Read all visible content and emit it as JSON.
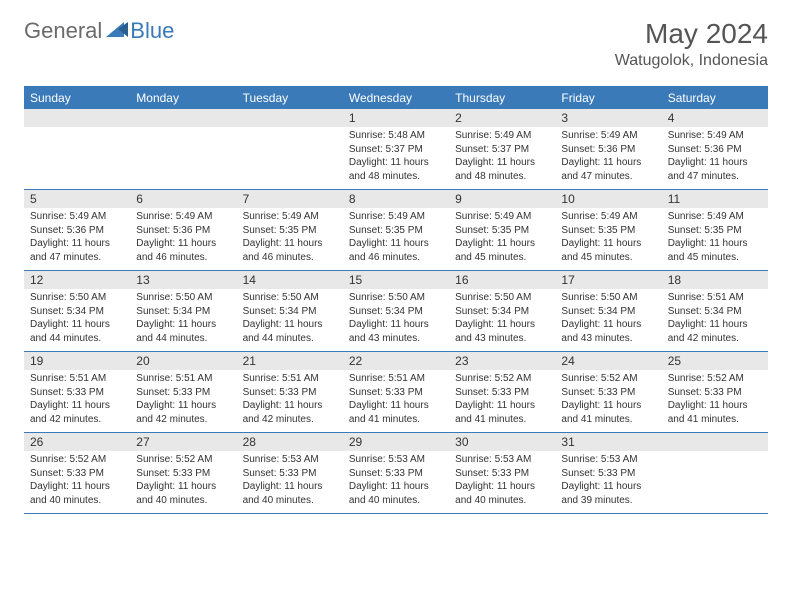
{
  "logo": {
    "general": "General",
    "blue": "Blue"
  },
  "title": {
    "month_year": "May 2024",
    "location": "Watugolok, Indonesia"
  },
  "colors": {
    "header_blue": "#3a7ab8",
    "daynum_bg": "#e8e8e8",
    "text": "#333333",
    "logo_gray": "#6b6b6b"
  },
  "weekdays": [
    "Sunday",
    "Monday",
    "Tuesday",
    "Wednesday",
    "Thursday",
    "Friday",
    "Saturday"
  ],
  "weeks": [
    [
      {
        "day": "",
        "sunrise": "",
        "sunset": "",
        "daylight": ""
      },
      {
        "day": "",
        "sunrise": "",
        "sunset": "",
        "daylight": ""
      },
      {
        "day": "",
        "sunrise": "",
        "sunset": "",
        "daylight": ""
      },
      {
        "day": "1",
        "sunrise": "Sunrise: 5:48 AM",
        "sunset": "Sunset: 5:37 PM",
        "daylight": "Daylight: 11 hours and 48 minutes."
      },
      {
        "day": "2",
        "sunrise": "Sunrise: 5:49 AM",
        "sunset": "Sunset: 5:37 PM",
        "daylight": "Daylight: 11 hours and 48 minutes."
      },
      {
        "day": "3",
        "sunrise": "Sunrise: 5:49 AM",
        "sunset": "Sunset: 5:36 PM",
        "daylight": "Daylight: 11 hours and 47 minutes."
      },
      {
        "day": "4",
        "sunrise": "Sunrise: 5:49 AM",
        "sunset": "Sunset: 5:36 PM",
        "daylight": "Daylight: 11 hours and 47 minutes."
      }
    ],
    [
      {
        "day": "5",
        "sunrise": "Sunrise: 5:49 AM",
        "sunset": "Sunset: 5:36 PM",
        "daylight": "Daylight: 11 hours and 47 minutes."
      },
      {
        "day": "6",
        "sunrise": "Sunrise: 5:49 AM",
        "sunset": "Sunset: 5:36 PM",
        "daylight": "Daylight: 11 hours and 46 minutes."
      },
      {
        "day": "7",
        "sunrise": "Sunrise: 5:49 AM",
        "sunset": "Sunset: 5:35 PM",
        "daylight": "Daylight: 11 hours and 46 minutes."
      },
      {
        "day": "8",
        "sunrise": "Sunrise: 5:49 AM",
        "sunset": "Sunset: 5:35 PM",
        "daylight": "Daylight: 11 hours and 46 minutes."
      },
      {
        "day": "9",
        "sunrise": "Sunrise: 5:49 AM",
        "sunset": "Sunset: 5:35 PM",
        "daylight": "Daylight: 11 hours and 45 minutes."
      },
      {
        "day": "10",
        "sunrise": "Sunrise: 5:49 AM",
        "sunset": "Sunset: 5:35 PM",
        "daylight": "Daylight: 11 hours and 45 minutes."
      },
      {
        "day": "11",
        "sunrise": "Sunrise: 5:49 AM",
        "sunset": "Sunset: 5:35 PM",
        "daylight": "Daylight: 11 hours and 45 minutes."
      }
    ],
    [
      {
        "day": "12",
        "sunrise": "Sunrise: 5:50 AM",
        "sunset": "Sunset: 5:34 PM",
        "daylight": "Daylight: 11 hours and 44 minutes."
      },
      {
        "day": "13",
        "sunrise": "Sunrise: 5:50 AM",
        "sunset": "Sunset: 5:34 PM",
        "daylight": "Daylight: 11 hours and 44 minutes."
      },
      {
        "day": "14",
        "sunrise": "Sunrise: 5:50 AM",
        "sunset": "Sunset: 5:34 PM",
        "daylight": "Daylight: 11 hours and 44 minutes."
      },
      {
        "day": "15",
        "sunrise": "Sunrise: 5:50 AM",
        "sunset": "Sunset: 5:34 PM",
        "daylight": "Daylight: 11 hours and 43 minutes."
      },
      {
        "day": "16",
        "sunrise": "Sunrise: 5:50 AM",
        "sunset": "Sunset: 5:34 PM",
        "daylight": "Daylight: 11 hours and 43 minutes."
      },
      {
        "day": "17",
        "sunrise": "Sunrise: 5:50 AM",
        "sunset": "Sunset: 5:34 PM",
        "daylight": "Daylight: 11 hours and 43 minutes."
      },
      {
        "day": "18",
        "sunrise": "Sunrise: 5:51 AM",
        "sunset": "Sunset: 5:34 PM",
        "daylight": "Daylight: 11 hours and 42 minutes."
      }
    ],
    [
      {
        "day": "19",
        "sunrise": "Sunrise: 5:51 AM",
        "sunset": "Sunset: 5:33 PM",
        "daylight": "Daylight: 11 hours and 42 minutes."
      },
      {
        "day": "20",
        "sunrise": "Sunrise: 5:51 AM",
        "sunset": "Sunset: 5:33 PM",
        "daylight": "Daylight: 11 hours and 42 minutes."
      },
      {
        "day": "21",
        "sunrise": "Sunrise: 5:51 AM",
        "sunset": "Sunset: 5:33 PM",
        "daylight": "Daylight: 11 hours and 42 minutes."
      },
      {
        "day": "22",
        "sunrise": "Sunrise: 5:51 AM",
        "sunset": "Sunset: 5:33 PM",
        "daylight": "Daylight: 11 hours and 41 minutes."
      },
      {
        "day": "23",
        "sunrise": "Sunrise: 5:52 AM",
        "sunset": "Sunset: 5:33 PM",
        "daylight": "Daylight: 11 hours and 41 minutes."
      },
      {
        "day": "24",
        "sunrise": "Sunrise: 5:52 AM",
        "sunset": "Sunset: 5:33 PM",
        "daylight": "Daylight: 11 hours and 41 minutes."
      },
      {
        "day": "25",
        "sunrise": "Sunrise: 5:52 AM",
        "sunset": "Sunset: 5:33 PM",
        "daylight": "Daylight: 11 hours and 41 minutes."
      }
    ],
    [
      {
        "day": "26",
        "sunrise": "Sunrise: 5:52 AM",
        "sunset": "Sunset: 5:33 PM",
        "daylight": "Daylight: 11 hours and 40 minutes."
      },
      {
        "day": "27",
        "sunrise": "Sunrise: 5:52 AM",
        "sunset": "Sunset: 5:33 PM",
        "daylight": "Daylight: 11 hours and 40 minutes."
      },
      {
        "day": "28",
        "sunrise": "Sunrise: 5:53 AM",
        "sunset": "Sunset: 5:33 PM",
        "daylight": "Daylight: 11 hours and 40 minutes."
      },
      {
        "day": "29",
        "sunrise": "Sunrise: 5:53 AM",
        "sunset": "Sunset: 5:33 PM",
        "daylight": "Daylight: 11 hours and 40 minutes."
      },
      {
        "day": "30",
        "sunrise": "Sunrise: 5:53 AM",
        "sunset": "Sunset: 5:33 PM",
        "daylight": "Daylight: 11 hours and 40 minutes."
      },
      {
        "day": "31",
        "sunrise": "Sunrise: 5:53 AM",
        "sunset": "Sunset: 5:33 PM",
        "daylight": "Daylight: 11 hours and 39 minutes."
      },
      {
        "day": "",
        "sunrise": "",
        "sunset": "",
        "daylight": ""
      }
    ]
  ]
}
